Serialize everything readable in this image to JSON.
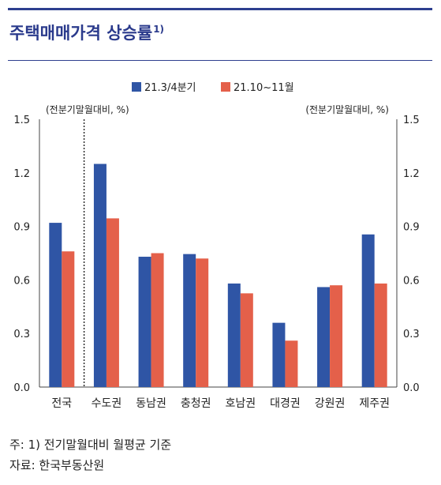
{
  "header": {
    "title": "주택매매가격 상승률",
    "title_sup": "1)"
  },
  "chart_data": {
    "type": "bar",
    "categories": [
      "전국",
      "수도권",
      "동남권",
      "충청권",
      "호남권",
      "대경권",
      "강원권",
      "제주권"
    ],
    "series": [
      {
        "name": "21.3/4분기",
        "color": "#2f55a5",
        "values": [
          0.92,
          1.25,
          0.73,
          0.745,
          0.58,
          0.36,
          0.56,
          0.855
        ]
      },
      {
        "name": "21.10~11월",
        "color": "#e4604a",
        "values": [
          0.76,
          0.945,
          0.75,
          0.72,
          0.525,
          0.26,
          0.57,
          0.58
        ]
      }
    ],
    "ylim": [
      0,
      1.5
    ],
    "yticks": [
      "0.0",
      "0.3",
      "0.6",
      "0.9",
      "1.2",
      "1.5"
    ],
    "ylabel_left": "(전분기말월대비, %)",
    "ylabel_right": "(전분기말월대비, %)",
    "legend_position": "top-center",
    "grid": false,
    "divider_after_category": "전국"
  },
  "footnotes": {
    "note": "주: 1) 전기말월대비 월평균 기준",
    "source": "자료: 한국부동산원"
  }
}
